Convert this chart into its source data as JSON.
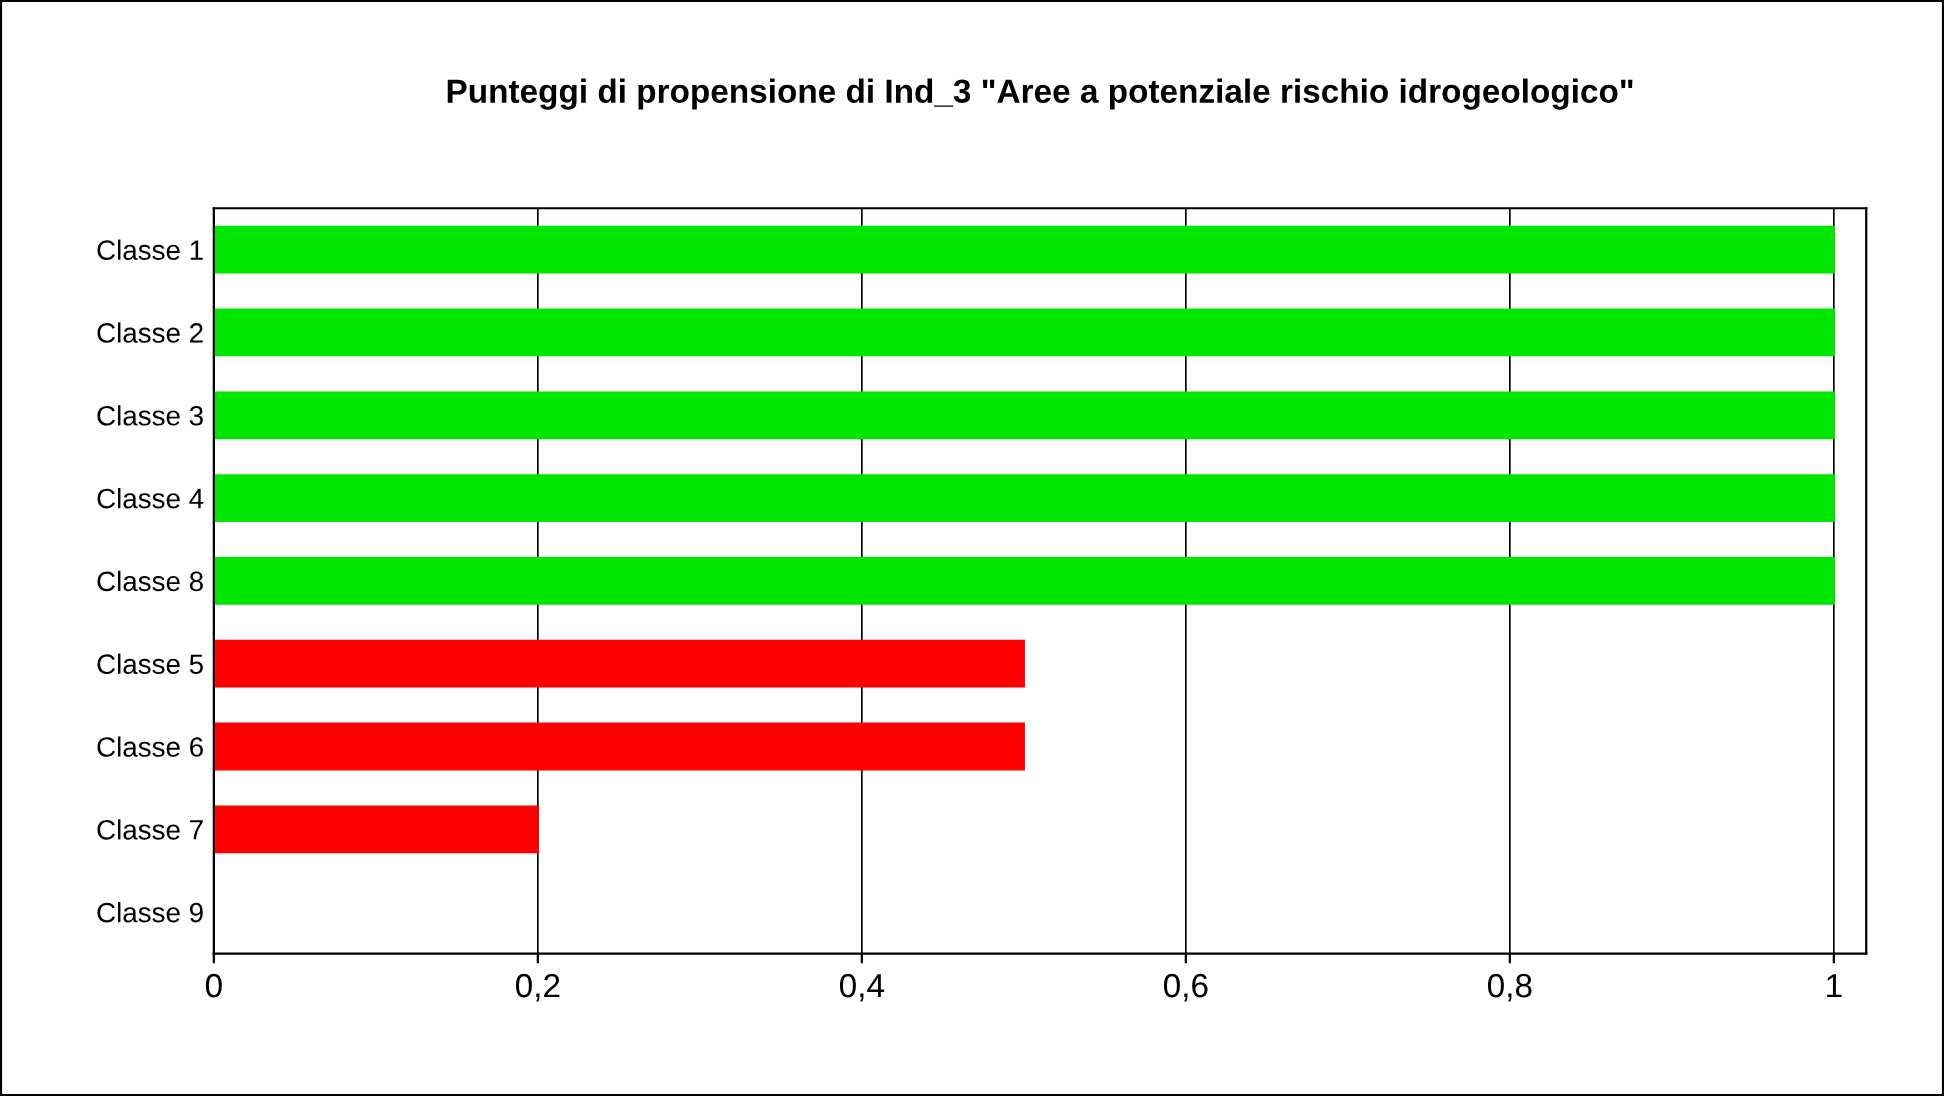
{
  "chart_data": {
    "type": "bar",
    "orientation": "horizontal",
    "title": "Punteggi di propensione di Ind_3 \"Aree a potenziale rischio idrogeologico\"",
    "categories": [
      "Classe 1",
      "Classe 2",
      "Classe 3",
      "Classe 4",
      "Classe 8",
      "Classe 5",
      "Classe 6",
      "Classe 7",
      "Classe 9"
    ],
    "values": [
      1,
      1,
      1,
      1,
      1,
      0.5,
      0.5,
      0.2,
      0
    ],
    "colors": [
      "#00e600",
      "#00e600",
      "#00e600",
      "#00e600",
      "#00e600",
      "#ff0000",
      "#ff0000",
      "#ff0000",
      "#ff0000"
    ],
    "xlim": [
      0,
      1.02
    ],
    "xticks": [
      0,
      {
        "value": 0.2,
        "label": "0,2"
      },
      {
        "value": 0.4,
        "label": "0,4"
      },
      {
        "value": 0.6,
        "label": "0,6"
      },
      {
        "value": 0.8,
        "label": "0,8"
      },
      1
    ],
    "grid": "x"
  }
}
